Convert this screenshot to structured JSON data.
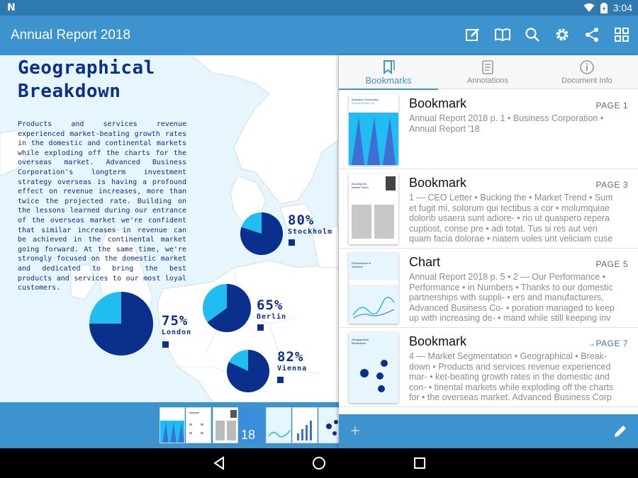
{
  "status_bar": {
    "logo": "N",
    "time": "3:04"
  },
  "app_bar": {
    "title": "Annual Report 2018",
    "actions": [
      "edit-icon",
      "book-icon",
      "search-icon",
      "settings-icon",
      "share-icon",
      "grid-icon"
    ]
  },
  "document": {
    "title_line1": "Geographical",
    "title_line2": "Breakdown",
    "body": "Products and services revenue experienced market-beating growth rates in the domestic and continental markets while exploding off the charts for the overseas market. Advanced Business Corporation's longterm investment strategy overseas is having a profound effect on revenue increases, more than twice the projected rate. Building on the lessons learned during our entrance of the overseas market we're confident that similar increases in revenue can be achieved in the continental market going forward. At the same time, we're strongly focused on the domestic market and dedicated to bring the best products and services to our most loyal customers."
  },
  "chart_data": {
    "type": "pie",
    "title": "Geographical Breakdown",
    "series": [
      {
        "name": "Stockholm",
        "value": 80,
        "label": "80%"
      },
      {
        "name": "Berlin",
        "value": 65,
        "label": "65%"
      },
      {
        "name": "London",
        "value": 75,
        "label": "75%"
      },
      {
        "name": "Vienna",
        "value": 82,
        "label": "82%"
      }
    ],
    "colors": {
      "share": "#0b2f8c",
      "remainder": "#1fbdf0"
    }
  },
  "thumb_strip": {
    "page_badge": "18"
  },
  "panel": {
    "tabs": [
      {
        "label": "Bookmarks",
        "icon": "bookmark-icon",
        "active": true
      },
      {
        "label": "Annotations",
        "icon": "annotations-icon",
        "active": false
      },
      {
        "label": "Document Info",
        "icon": "info-icon",
        "active": false
      }
    ],
    "items": [
      {
        "title": "Bookmark",
        "page": "PAGE 1",
        "description": "Annual Report 2018 p. 1 • Business Corporation • Annual Report '18",
        "thumb_title": "Business Corporation",
        "thumb_subtitle": "Annual Report '18"
      },
      {
        "title": "Bookmark",
        "page": "PAGE 3",
        "description": "1 — CEO Letter • Bucking the • Market Trend • Sum et fugit mi, solorum qui tectibus a cor • molumquiae dolorib usaera sunt adiore- • rio ut quaspero repera cuptiost, conse pre • adi totat. Tus si res aut veri quam facia dolorae • niatem voles unt veliciam cuse",
        "thumb_title": "Bucking the Market Trend"
      },
      {
        "title": "Chart",
        "page": "PAGE 5",
        "description": "Annual Report 2018 p. 5 • 2 — Our Performance • Performance • in Numbers • Thanks to our domestic partnerships with suppli- • ers and manufacturers, Advanced Business Co- • poration managed to keep up with increasing de- • mand while still keeping inv",
        "thumb_title": "Performance in Numbers"
      },
      {
        "title": "Bookmark",
        "page": "PAGE 7",
        "description": "4 — Market Segmentation • Geographical • Break- down • Products and services revenue experienced mar- • ket-beating growth rates in the domestic and con- • tinental markets while exploding off the charts for • the overseas market. Advanced Business Corp",
        "thumb_title": "Geographical Breakdown"
      }
    ],
    "add_label": "+"
  },
  "colors": {
    "primary": "#3d93ce",
    "status": "#2e79b0",
    "navy": "#0b2f8c",
    "cyan": "#1fbdf0"
  }
}
